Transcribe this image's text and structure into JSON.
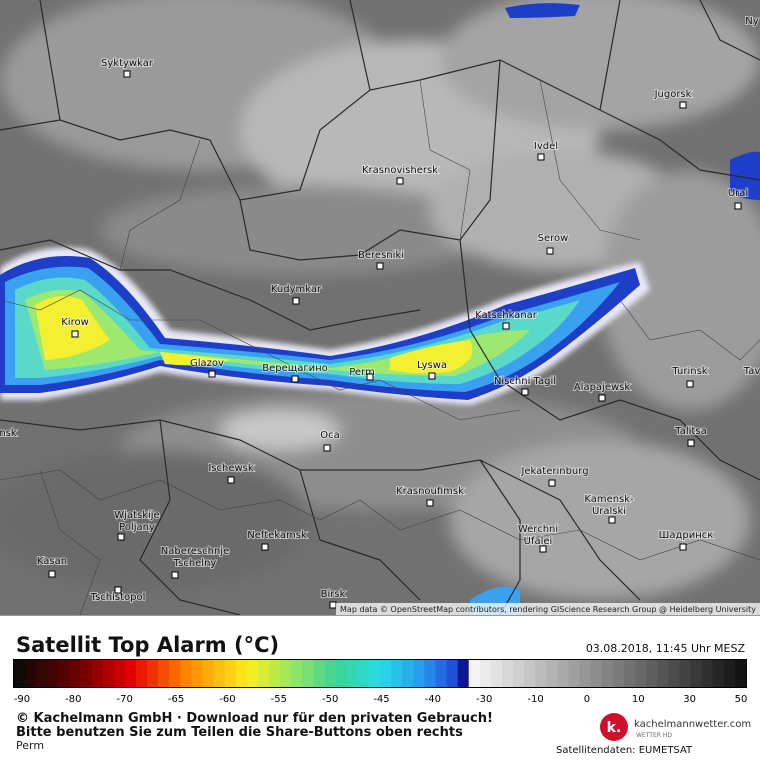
{
  "map": {
    "cities": [
      [
        "Syktywkar"
      ],
      [
        "Jugorsk"
      ],
      [
        "Ivdel"
      ],
      [
        "Krasnovishersk"
      ],
      [
        "Urai"
      ],
      [
        "Beresniki"
      ],
      [
        "Serow"
      ],
      [
        "Kudymkar"
      ],
      [
        "Katschkanar"
      ],
      [
        "Kirow"
      ],
      [
        "Glazov"
      ],
      [
        "Верещагино"
      ],
      [
        "Perm"
      ],
      [
        "Lyswa"
      ],
      [
        "Nischni Tagil"
      ],
      [
        "Alapajewsk"
      ],
      [
        "Turinsk"
      ],
      [
        "Tav"
      ],
      [
        "nsk"
      ],
      [
        "Oca"
      ],
      [
        "Ischewsk"
      ],
      [
        "Talitsa"
      ],
      [
        "Jekaterinburg"
      ],
      [
        "Krasnoufimsk"
      ],
      [
        "Kamensk-",
        "Uralski"
      ],
      [
        "Wjatskije",
        "Poljany"
      ],
      [
        "Werchni",
        "Ufalei"
      ],
      [
        "Neftekamsk"
      ],
      [
        "Шадринск"
      ],
      [
        "Nabereschnje",
        "Tschelny"
      ],
      [
        "Kasan"
      ],
      [
        "Tschistopol"
      ],
      [
        "Birsk"
      ],
      [
        "Ny"
      ]
    ],
    "attribution": "Map data © OpenStreetMap contributors, rendering GIScience Research Group @ Heidelberg University"
  },
  "legend": {
    "title": "Satellit Top Alarm (°C)",
    "datetime": "03.08.2018, 11:45 Uhr MESZ",
    "ticks": [
      -90,
      -80,
      -70,
      -65,
      -60,
      -55,
      -50,
      -45,
      -40,
      -30,
      -10,
      0,
      10,
      30,
      50
    ]
  },
  "footer": {
    "copyright": "© Kachelmann GmbH · Download nur für den privaten Gebrauch!",
    "share_note": "Bitte benutzen Sie zum Teilen die Share-Buttons oben rechts",
    "location": "Perm",
    "logo_name": "kachelmannwetter.com",
    "logo_sub": "WETTER HD",
    "source": "Satellitendaten: EUMETSAT"
  }
}
